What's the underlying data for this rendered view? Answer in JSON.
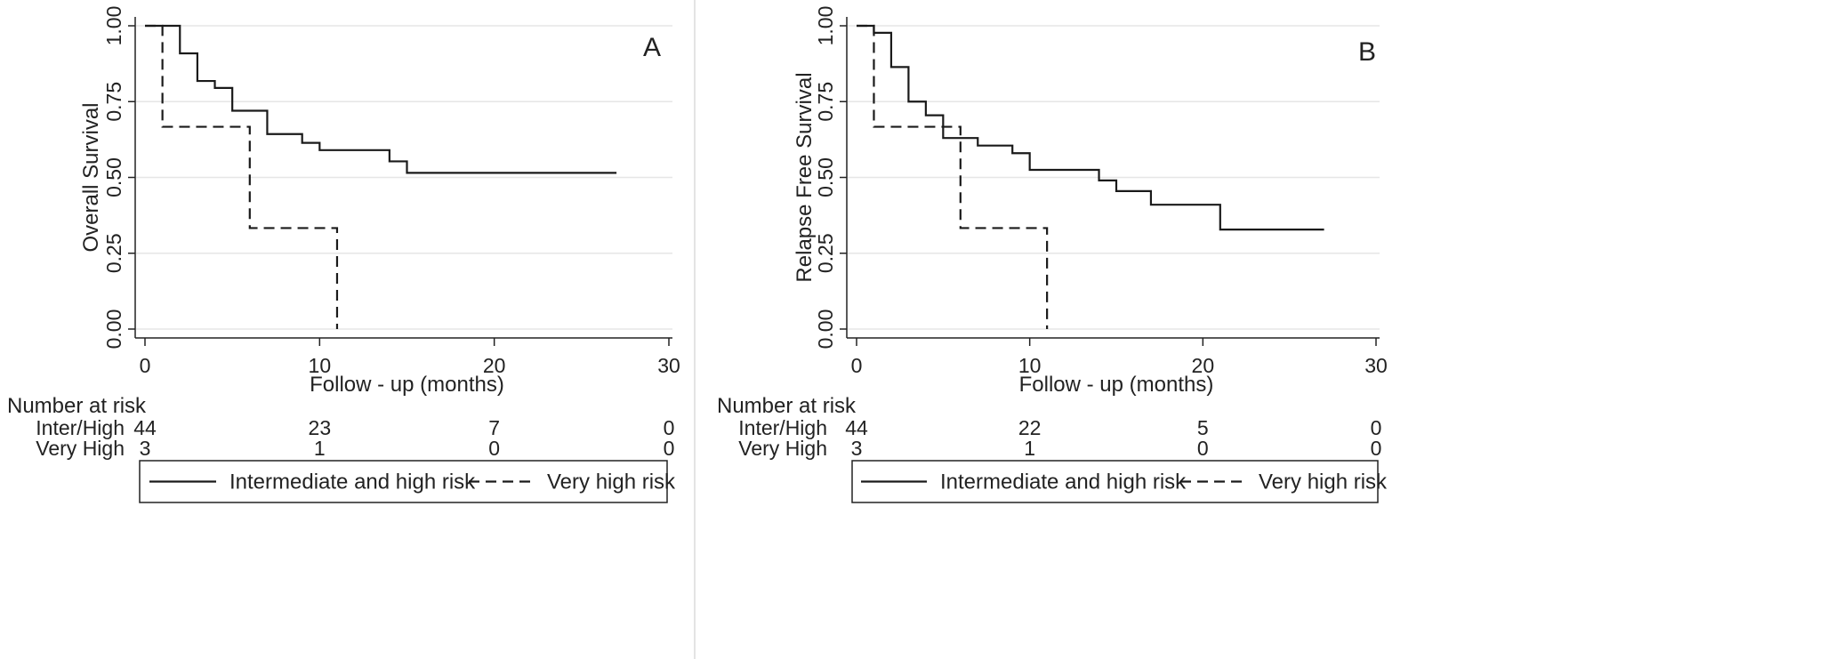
{
  "chart_data": [
    {
      "type": "line",
      "panel_label": "A",
      "xlabel": "Follow - up (months)",
      "ylabel": "Overall Survival",
      "xlim": [
        0,
        30
      ],
      "ylim": [
        0,
        1
      ],
      "xticks": [
        0,
        10,
        20,
        30
      ],
      "yticks": [
        0,
        0.25,
        0.5,
        0.75,
        1.0
      ],
      "xtick_labels": [
        "0",
        "10",
        "20",
        "30"
      ],
      "ytick_labels": [
        "0.00",
        "0.25",
        "0.50",
        "0.75",
        "1.00"
      ],
      "grid": true,
      "legend_position": "bottom",
      "series": [
        {
          "name": "Intermediate and high risk",
          "line_style": "solid",
          "step": true,
          "x": [
            0,
            2,
            3,
            4,
            5,
            7,
            9,
            10,
            14,
            15,
            27
          ],
          "y": [
            1.0,
            0.909,
            0.818,
            0.795,
            0.72,
            0.643,
            0.614,
            0.59,
            0.553,
            0.515,
            0.515
          ]
        },
        {
          "name": "Very high risk",
          "line_style": "dashed",
          "step": true,
          "x": [
            0,
            1,
            6,
            11
          ],
          "y": [
            1.0,
            0.667,
            0.333,
            0.0
          ]
        }
      ],
      "risk_table": {
        "title": "Number at risk",
        "times": [
          0,
          10,
          20,
          30
        ],
        "rows": [
          {
            "label": "Inter/High",
            "values": [
              "44",
              "23",
              "7",
              "0"
            ]
          },
          {
            "label": "Very High",
            "values": [
              "3",
              "1",
              "0",
              "0"
            ]
          }
        ]
      }
    },
    {
      "type": "line",
      "panel_label": "B",
      "xlabel": "Follow - up (months)",
      "ylabel": "Relapse Free Survival",
      "xlim": [
        0,
        30
      ],
      "ylim": [
        0,
        1
      ],
      "xticks": [
        0,
        10,
        20,
        30
      ],
      "yticks": [
        0,
        0.25,
        0.5,
        0.75,
        1.0
      ],
      "xtick_labels": [
        "0",
        "10",
        "20",
        "30"
      ],
      "ytick_labels": [
        "0.00",
        "0.25",
        "0.50",
        "0.75",
        "1.00"
      ],
      "grid": true,
      "legend_position": "bottom",
      "series": [
        {
          "name": "Intermediate and high risk",
          "line_style": "solid",
          "step": true,
          "x": [
            0,
            1,
            2,
            3,
            4,
            5,
            7,
            9,
            10,
            14,
            15,
            17,
            21,
            27
          ],
          "y": [
            1.0,
            0.977,
            0.864,
            0.75,
            0.705,
            0.63,
            0.605,
            0.58,
            0.525,
            0.49,
            0.455,
            0.41,
            0.328,
            0.328
          ]
        },
        {
          "name": "Very high risk",
          "line_style": "dashed",
          "step": true,
          "x": [
            0,
            1,
            6,
            11
          ],
          "y": [
            1.0,
            0.667,
            0.333,
            0.0
          ]
        }
      ],
      "risk_table": {
        "title": "Number at risk",
        "times": [
          0,
          10,
          20,
          30
        ],
        "rows": [
          {
            "label": "Inter/High",
            "values": [
              "44",
              "22",
              "5",
              "0"
            ]
          },
          {
            "label": "Very High",
            "values": [
              "3",
              "1",
              "0",
              "0"
            ]
          }
        ]
      }
    }
  ]
}
